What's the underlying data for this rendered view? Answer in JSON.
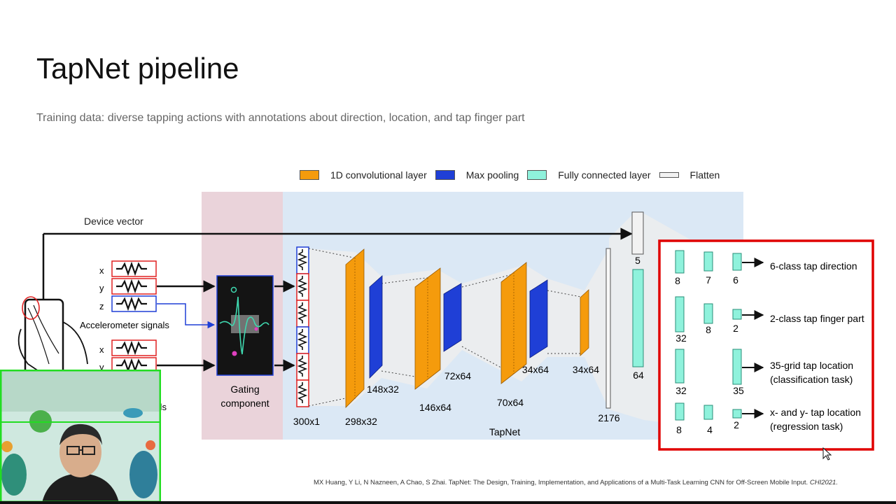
{
  "slide": {
    "title": "TapNet pipeline",
    "subtitle": "Training data: diverse tapping actions with annotations about direction, location, and tap finger part"
  },
  "legend": [
    {
      "label": "1D convolutional layer",
      "color": "#f59b0c"
    },
    {
      "label": "Max pooling",
      "color": "#1f3fd6"
    },
    {
      "label": "Fully connected layer",
      "color": "#8ff2dc"
    },
    {
      "label": "Flatten",
      "color": "#f2f2f2"
    }
  ],
  "diagram": {
    "device_vector": "Device vector",
    "axes": [
      "x",
      "y",
      "z"
    ],
    "accelerometer": "Accelerometer signals",
    "gyroscope": "Gyroscope signals",
    "gating_line1": "Gating",
    "gating_line2": "component",
    "tapnet": "TapNet",
    "dims": {
      "input": "300x1",
      "c1": "298x32",
      "p1": "148x32",
      "c2": "146x64",
      "p2": "72x64",
      "c3": "70x64",
      "p3": "34x64",
      "c4": "34x64",
      "flatten": "2176",
      "dv": "5",
      "fc": "64"
    },
    "heads": [
      {
        "units": [
          "8",
          "7",
          "6"
        ],
        "label1": "6-class tap direction",
        "label2": ""
      },
      {
        "units": [
          "32",
          "8",
          "2"
        ],
        "label1": "2-class tap finger part",
        "label2": ""
      },
      {
        "units": [
          "32",
          "",
          "35"
        ],
        "label1": "35-grid tap location",
        "label2": "(classification task)"
      },
      {
        "units": [
          "8",
          "4",
          "2"
        ],
        "label1": "x- and y- tap location",
        "label2": "(regression task)"
      }
    ]
  },
  "citation": {
    "text": "MX Huang, Y Li, N Nazneen, A Chao, S Zhai. TapNet: The Design, Training, Implementation, and Applications of a Multi-Task Learning CNN for Off-Screen Mobile Input.",
    "venue": "CHI2021."
  }
}
